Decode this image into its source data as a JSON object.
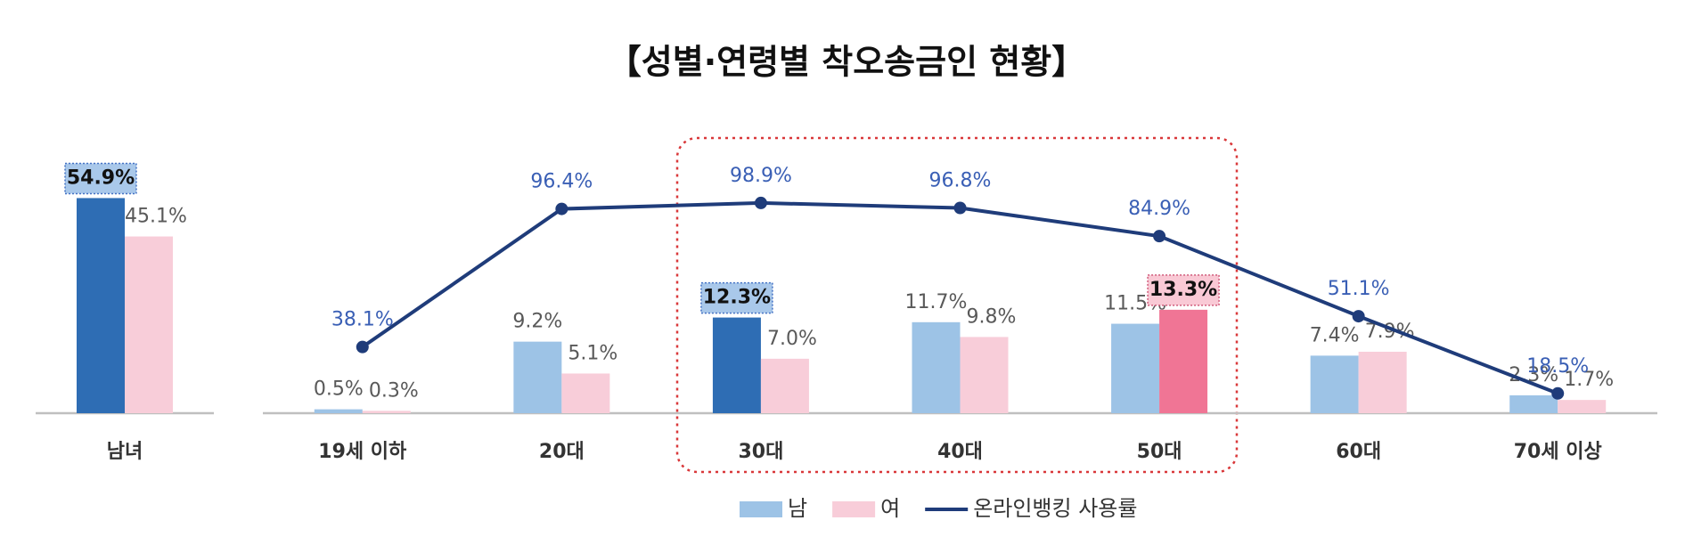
{
  "title": "【성별·연령별 착오송금인 현황】",
  "chart_data": [
    {
      "type": "bar",
      "categories": [
        "남녀"
      ],
      "ylim": [
        0,
        60
      ],
      "series": [
        {
          "color": "#2e6db4",
          "values": [
            54.9
          ],
          "value_labels": [
            "54.9%"
          ],
          "boxed_labels": [
            0
          ],
          "box_color": "#a9c8ea",
          "box_border": "#4472c4"
        },
        {
          "color": "#f8cdd9",
          "values": [
            45.1
          ],
          "value_labels": [
            "45.1%"
          ]
        }
      ]
    },
    {
      "type": "bar_line",
      "categories": [
        "19세 이하",
        "20대",
        "30대",
        "40대",
        "50대",
        "60대",
        "70세 이상"
      ],
      "ylim": [
        0,
        15
      ],
      "y2lim": [
        0,
        100
      ],
      "legend": "bottom",
      "series": [
        {
          "name": "남",
          "type": "bar",
          "color": "#9dc3e6",
          "colors": [
            "#9dc3e6",
            "#9dc3e6",
            "#2e6db4",
            "#9dc3e6",
            "#9dc3e6",
            "#9dc3e6",
            "#9dc3e6"
          ],
          "values": [
            0.5,
            9.2,
            12.3,
            11.7,
            11.5,
            7.4,
            2.3
          ],
          "value_labels": [
            "0.5%",
            "9.2%",
            "12.3%",
            "11.7%",
            "11.5%",
            "7.4%",
            "2.3%"
          ],
          "boxed_labels": [
            2
          ],
          "box_color": "#a9c8ea",
          "box_border": "#4472c4"
        },
        {
          "name": "여",
          "type": "bar",
          "color": "#f8cdd9",
          "colors": [
            "#f8cdd9",
            "#f8cdd9",
            "#f8cdd9",
            "#f8cdd9",
            "#f07595",
            "#f8cdd9",
            "#f8cdd9"
          ],
          "values": [
            0.3,
            5.1,
            7.0,
            9.8,
            13.3,
            7.9,
            1.7
          ],
          "value_labels": [
            "0.3%",
            "5.1%",
            "7.0%",
            "9.8%",
            "13.3%",
            "7.9%",
            "1.7%"
          ],
          "boxed_labels": [
            4
          ],
          "box_color": "#f9c9d5",
          "box_border": "#d05a7a"
        },
        {
          "name": "온라인뱅킹 사용률",
          "type": "line",
          "axis": "y2",
          "color": "#1f3c7a",
          "label_color": "#3a5fb5",
          "values": [
            38.1,
            96.4,
            98.9,
            96.8,
            84.9,
            51.1,
            18.5
          ],
          "value_labels": [
            "38.1%",
            "96.4%",
            "98.9%",
            "96.8%",
            "84.9%",
            "51.1%",
            "18.5%"
          ]
        }
      ]
    }
  ]
}
